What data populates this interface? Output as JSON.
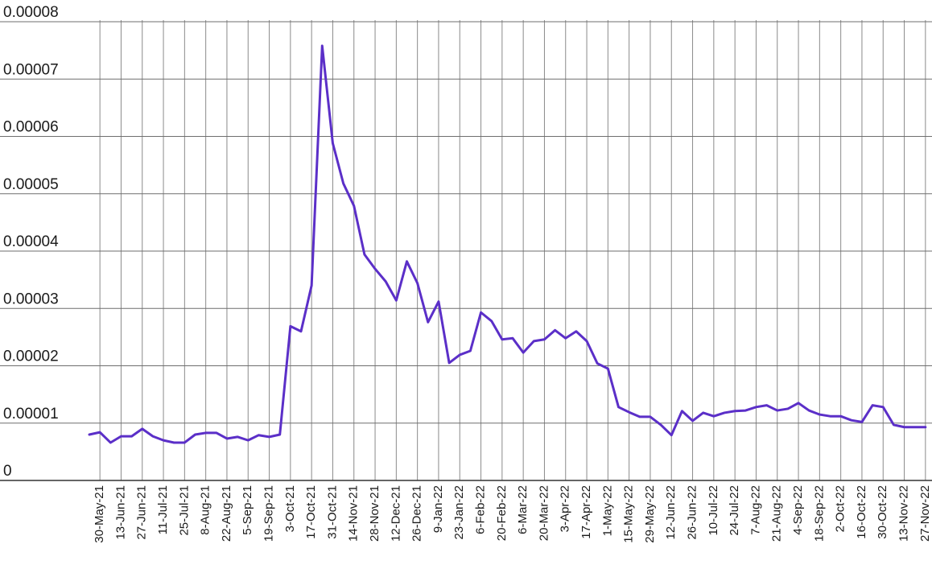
{
  "chart_data": {
    "type": "line",
    "color": "#5b2fc8",
    "categories": [
      null,
      "30-May-21",
      null,
      "13-Jun-21",
      null,
      "27-Jun-21",
      null,
      "11-Jul-21",
      null,
      "25-Jul-21",
      null,
      "8-Aug-21",
      null,
      "22-Aug-21",
      null,
      "5-Sep-21",
      null,
      "19-Sep-21",
      null,
      "3-Oct-21",
      null,
      "17-Oct-21",
      null,
      "31-Oct-21",
      null,
      "14-Nov-21",
      null,
      "28-Nov-21",
      null,
      "12-Dec-21",
      null,
      "26-Dec-21",
      null,
      "9-Jan-22",
      null,
      "23-Jan-22",
      null,
      "6-Feb-22",
      null,
      "20-Feb-22",
      null,
      "6-Mar-22",
      null,
      "20-Mar-22",
      null,
      "3-Apr-22",
      null,
      "17-Apr-22",
      null,
      "1-May-22",
      null,
      "15-May-22",
      null,
      "29-May-22",
      null,
      "12-Jun-22",
      null,
      "26-Jun-22",
      null,
      "10-Jul-22",
      null,
      "24-Jul-22",
      null,
      "7-Aug-22",
      null,
      "21-Aug-22",
      null,
      "4-Sep-22",
      null,
      "18-Sep-22",
      null,
      "2-Oct-22",
      null,
      "16-Oct-22",
      null,
      "30-Oct-22",
      null,
      "13-Nov-22",
      null,
      "27-Nov-22"
    ],
    "values": [
      8e-06,
      8.4e-06,
      6.6e-06,
      7.7e-06,
      7.7e-06,
      9e-06,
      7.7e-06,
      7e-06,
      6.6e-06,
      6.6e-06,
      8e-06,
      8.3e-06,
      8.3e-06,
      7.3e-06,
      7.6e-06,
      7e-06,
      7.9e-06,
      7.6e-06,
      8e-06,
      2.69e-05,
      2.6e-05,
      3.4e-05,
      7.58e-05,
      5.88e-05,
      5.18e-05,
      4.79e-05,
      3.94e-05,
      3.69e-05,
      3.47e-05,
      3.14e-05,
      3.82e-05,
      3.44e-05,
      2.76e-05,
      3.12e-05,
      2.05e-05,
      2.19e-05,
      2.26e-05,
      2.93e-05,
      2.78e-05,
      2.46e-05,
      2.48e-05,
      2.23e-05,
      2.43e-05,
      2.46e-05,
      2.62e-05,
      2.48e-05,
      2.6e-05,
      2.43e-05,
      2.04e-05,
      1.95e-05,
      1.28e-05,
      1.19e-05,
      1.11e-05,
      1.11e-05,
      9.7e-06,
      7.9e-06,
      1.21e-05,
      1.04e-05,
      1.18e-05,
      1.12e-05,
      1.18e-05,
      1.21e-05,
      1.22e-05,
      1.28e-05,
      1.31e-05,
      1.22e-05,
      1.25e-05,
      1.35e-05,
      1.22e-05,
      1.15e-05,
      1.12e-05,
      1.12e-05,
      1.05e-05,
      1.02e-05,
      1.31e-05,
      1.28e-05,
      9.7e-06,
      9.3e-06,
      9.3e-06,
      9.3e-06
    ],
    "ylim": [
      0,
      8e-05
    ],
    "yticks": [
      0,
      1e-05,
      2e-05,
      3e-05,
      4e-05,
      5e-05,
      6e-05,
      7e-05,
      8e-05
    ],
    "grid": true
  }
}
